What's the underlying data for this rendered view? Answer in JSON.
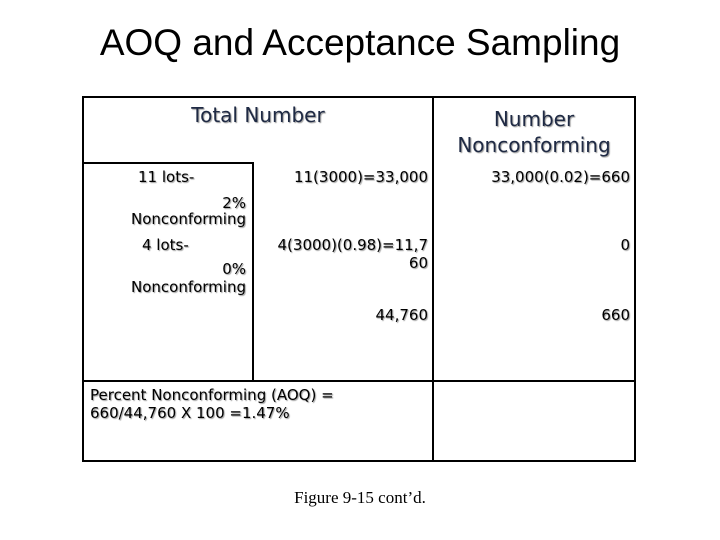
{
  "title": "AOQ and Acceptance Sampling",
  "table": {
    "header_total": "Total Number",
    "header_nonconforming_line1": "Number",
    "header_nonconforming_line2": "Nonconforming",
    "row1_lots": "11 lots-",
    "row1_pct": "2%",
    "row1_pct_label": "Nonconforming",
    "row1_calc": "11(3000)=33,000",
    "row1_nc": "33,000(0.02)=660",
    "row2_lots": "4 lots-",
    "row2_pct": "0%",
    "row2_pct_label": "Nonconforming",
    "row2_calc_line1": "4(3000)(0.98)=11,7",
    "row2_calc_line2": "60",
    "row2_nc": "0",
    "total_number": "44,760",
    "total_nc": "660",
    "aoq_line1": "Percent Nonconforming (AOQ) =",
    "aoq_line2": "660/44,760 X 100 =1.47%"
  },
  "caption": "Figure 9-15 cont’d."
}
